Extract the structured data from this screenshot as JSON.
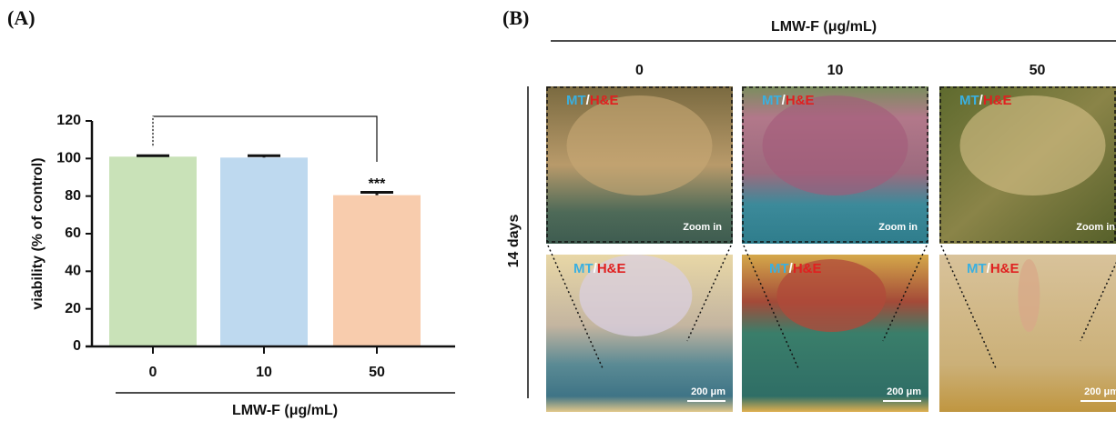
{
  "chart_data": {
    "type": "bar",
    "panel_label": "(A)",
    "ylabel": "viability (% of control)",
    "xlabel": "LMW-F (μg/mL)",
    "categories": [
      "0",
      "10",
      "50"
    ],
    "values": [
      101,
      100.5,
      80.5
    ],
    "errors": [
      0.5,
      1,
      1.5
    ],
    "colors": [
      "#c9e2b8",
      "#bed9ef",
      "#f8ccad"
    ],
    "annotation": "***",
    "ylim": [
      0,
      120
    ],
    "yticks": [
      0,
      20,
      40,
      60,
      80,
      100,
      120
    ]
  },
  "panel_b": {
    "label": "(B)",
    "title": "LMW-F (μg/mL)",
    "columns": [
      "0",
      "10",
      "50"
    ],
    "row_label": "14 days",
    "stain": {
      "mt": "MT",
      "sep": "/",
      "he": "H&E"
    },
    "zoom": "Zoom in",
    "scale": "200 μm"
  }
}
